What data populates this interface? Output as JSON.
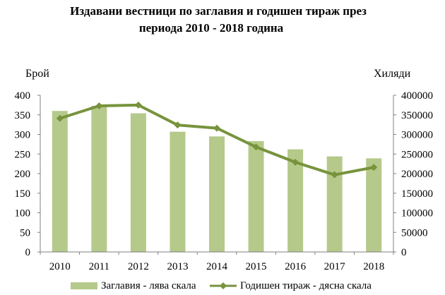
{
  "chart_data": {
    "type": "bar",
    "title_lines": [
      "Издавани вестници по заглавия и годишен тираж през",
      "периода 2010 - 2018 година"
    ],
    "left_axis_label": "Брой",
    "right_axis_label": "Хиляди",
    "categories": [
      "2010",
      "2011",
      "2012",
      "2013",
      "2014",
      "2015",
      "2016",
      "2017",
      "2018"
    ],
    "left_ticks": [
      "0",
      "50",
      "100",
      "150",
      "200",
      "250",
      "300",
      "350",
      "400"
    ],
    "right_ticks": [
      "0",
      "50000",
      "100000",
      "150000",
      "200000",
      "250000",
      "300000",
      "350000",
      "400000"
    ],
    "ylim_left": [
      0,
      400
    ],
    "ylim_right": [
      0,
      400000
    ],
    "series": [
      {
        "name": "Заглавия - лява скала",
        "type": "bar",
        "axis": "left",
        "values": [
          360,
          373,
          354,
          307,
          295,
          283,
          262,
          244,
          239
        ]
      },
      {
        "name": "Годишен тираж - дясна скала",
        "type": "line",
        "axis": "right",
        "values": [
          341000,
          373000,
          375000,
          324000,
          316000,
          268000,
          229000,
          197000,
          216000
        ]
      }
    ],
    "colors": {
      "bar": "#b5c98b",
      "line": "#77933c"
    },
    "legend_position": "bottom",
    "grid": false
  }
}
